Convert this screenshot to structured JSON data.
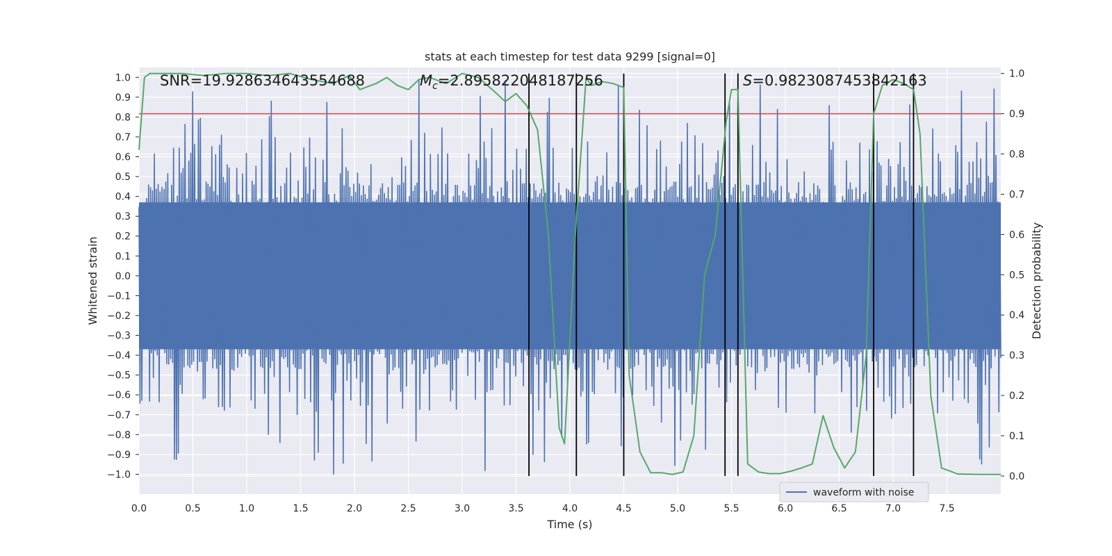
{
  "chart_data": {
    "type": "line",
    "title": "stats at each timestep for test data 9299 [signal=0]",
    "xlabel": "Time (s)",
    "ylabel_left": "Whitened strain",
    "ylabel_right": "Detection probability",
    "xlim": [
      0,
      8
    ],
    "ylim_left": [
      -1.1,
      1.05
    ],
    "ylim_right": [
      -0.045,
      1.015
    ],
    "x_ticks": [
      0.0,
      0.5,
      1.0,
      1.5,
      2.0,
      2.5,
      3.0,
      3.5,
      4.0,
      4.5,
      5.0,
      5.5,
      6.0,
      6.5,
      7.0,
      7.5
    ],
    "x_tick_labels": [
      "0.0",
      "0.5",
      "1.0",
      "1.5",
      "2.0",
      "2.5",
      "3.0",
      "3.5",
      "4.0",
      "4.5",
      "5.0",
      "5.5",
      "6.0",
      "6.5",
      "7.0",
      "7.5"
    ],
    "y_ticks_left": [
      1.0,
      0.9,
      0.8,
      0.7,
      0.6,
      0.5,
      0.4,
      0.3,
      0.2,
      0.1,
      0.0,
      -0.1,
      -0.2,
      -0.3,
      -0.4,
      -0.5,
      -0.6,
      -0.7,
      -0.8,
      -0.9,
      -1.0
    ],
    "y_tick_labels_left": [
      "1.0",
      "0.9",
      "0.8",
      "0.7",
      "0.6",
      "0.5",
      "0.4",
      "0.3",
      "0.2",
      "0.1",
      "0.0",
      "−0.1",
      "−0.2",
      "−0.3",
      "−0.4",
      "−0.5",
      "−0.6",
      "−0.7",
      "−0.8",
      "−0.9",
      "−1.0"
    ],
    "y_ticks_right": [
      1.0,
      0.9,
      0.8,
      0.7,
      0.6,
      0.5,
      0.4,
      0.3,
      0.2,
      0.1,
      0.0
    ],
    "y_tick_labels_right": [
      "1.0",
      "0.9",
      "0.8",
      "0.7",
      "0.6",
      "0.5",
      "0.4",
      "0.3",
      "0.2",
      "0.1",
      "0.0"
    ],
    "annotations": {
      "snr": "SNR=19.928634643554688",
      "mc_symbol": "M",
      "mc_sub": "c",
      "mc_value": "=2.895822048187256",
      "s_symbol": "S",
      "s_value": "=0.9823087453842163"
    },
    "legend": {
      "label": "waveform with noise",
      "location": "lower-right"
    },
    "threshold": {
      "axis": "right",
      "value": 0.9,
      "color": "#c44e52"
    },
    "vertical_lines_x": [
      3.62,
      4.06,
      4.5,
      5.44,
      5.56,
      6.82,
      7.19
    ],
    "waveform_noise": {
      "x_range": [
        0,
        8
      ],
      "n_samples": 900,
      "core_amplitude": 0.45,
      "spike_max": 1.0,
      "color": "#4c72b0"
    },
    "detection_probability": {
      "color": "#55a868",
      "x": [
        0.0,
        0.05,
        0.1,
        0.2,
        0.4,
        0.6,
        0.8,
        1.0,
        1.2,
        1.4,
        1.6,
        1.8,
        1.95,
        2.05,
        2.2,
        2.3,
        2.4,
        2.5,
        2.6,
        2.7,
        2.85,
        3.0,
        3.15,
        3.3,
        3.4,
        3.5,
        3.6,
        3.7,
        3.8,
        3.9,
        3.95,
        4.05,
        4.15,
        4.2,
        4.3,
        4.4,
        4.45,
        4.5,
        4.55,
        4.65,
        4.75,
        4.85,
        4.95,
        5.05,
        5.15,
        5.25,
        5.35,
        5.45,
        5.5,
        5.56,
        5.65,
        5.75,
        5.85,
        5.95,
        6.05,
        6.15,
        6.25,
        6.35,
        6.45,
        6.55,
        6.65,
        6.75,
        6.82,
        6.9,
        7.0,
        7.1,
        7.19,
        7.25,
        7.35,
        7.45,
        7.6,
        7.8,
        8.0
      ],
      "y": [
        0.81,
        0.99,
        1.0,
        1.0,
        1.0,
        0.995,
        1.0,
        1.0,
        0.995,
        1.0,
        0.985,
        0.975,
        0.995,
        0.96,
        0.975,
        0.99,
        0.97,
        0.96,
        0.985,
        0.99,
        0.975,
        1.0,
        0.99,
        0.955,
        0.93,
        0.95,
        0.92,
        0.86,
        0.6,
        0.12,
        0.08,
        0.6,
        0.99,
        0.97,
        0.98,
        0.975,
        0.97,
        0.965,
        0.25,
        0.06,
        0.008,
        0.008,
        0.004,
        0.01,
        0.1,
        0.5,
        0.6,
        0.88,
        0.96,
        0.96,
        0.03,
        0.01,
        0.006,
        0.006,
        0.012,
        0.02,
        0.03,
        0.15,
        0.07,
        0.02,
        0.06,
        0.3,
        0.9,
        0.97,
        0.985,
        0.975,
        0.96,
        0.85,
        0.2,
        0.02,
        0.005,
        0.004,
        0.004
      ]
    }
  }
}
